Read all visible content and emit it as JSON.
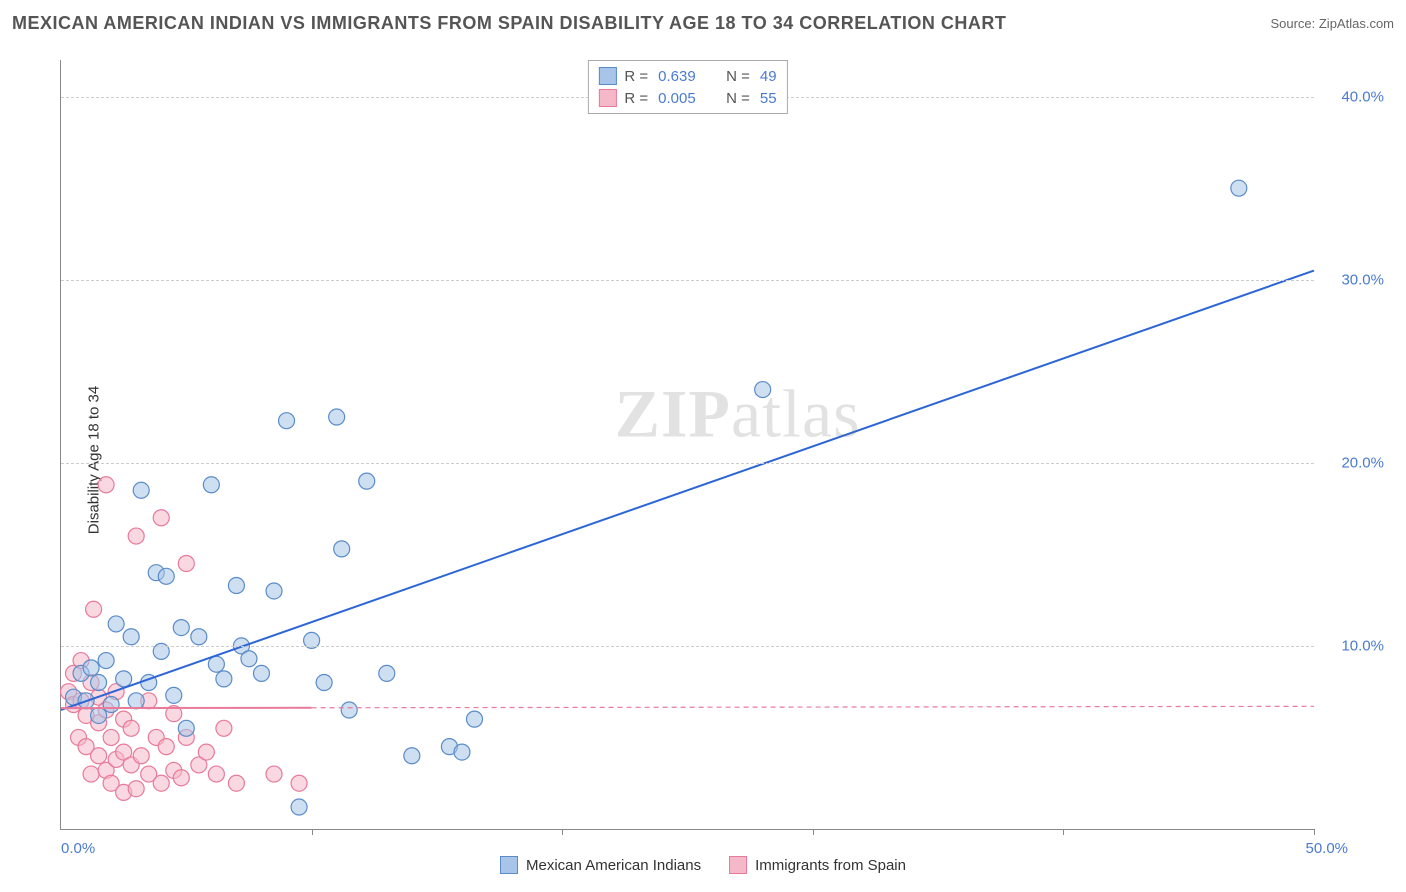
{
  "header": {
    "title": "MEXICAN AMERICAN INDIAN VS IMMIGRANTS FROM SPAIN DISABILITY AGE 18 TO 34 CORRELATION CHART",
    "source": "Source: ZipAtlas.com"
  },
  "chart": {
    "type": "scatter",
    "ylabel": "Disability Age 18 to 34",
    "watermark": "ZIPatlas",
    "background_color": "#ffffff",
    "grid_color": "#cccccc",
    "axis_color": "#888888",
    "xlim": [
      0,
      50
    ],
    "ylim": [
      0,
      42
    ],
    "xticks": [
      0,
      10,
      20,
      30,
      40,
      50
    ],
    "xtick_labels": [
      "0.0%",
      "",
      "",
      "",
      "",
      "50.0%"
    ],
    "yticks": [
      10,
      20,
      30,
      40
    ],
    "ytick_labels": [
      "10.0%",
      "20.0%",
      "30.0%",
      "40.0%"
    ],
    "label_fontsize": 15,
    "label_color": "#4a7bd0",
    "marker_radius": 8,
    "marker_opacity": 0.55,
    "series": [
      {
        "id": "mexican_american_indians",
        "label": "Mexican American Indians",
        "fill_color": "#a8c4e8",
        "stroke_color": "#5a8cc8",
        "trend_color": "#2c66d6",
        "trend_width": 2,
        "trend_dash": "none",
        "r": 0.639,
        "n": 49,
        "trend": {
          "x1": 0,
          "y1": 6.5,
          "x2": 50,
          "y2": 30.5
        },
        "points": [
          [
            0.5,
            7.2
          ],
          [
            0.8,
            8.5
          ],
          [
            1.0,
            7.0
          ],
          [
            1.2,
            8.8
          ],
          [
            1.5,
            6.2
          ],
          [
            1.5,
            8.0
          ],
          [
            1.8,
            9.2
          ],
          [
            2.0,
            6.8
          ],
          [
            2.2,
            11.2
          ],
          [
            2.5,
            8.2
          ],
          [
            2.8,
            10.5
          ],
          [
            3.0,
            7.0
          ],
          [
            3.2,
            18.5
          ],
          [
            3.5,
            8.0
          ],
          [
            3.8,
            14.0
          ],
          [
            4.0,
            9.7
          ],
          [
            4.2,
            13.8
          ],
          [
            4.5,
            7.3
          ],
          [
            4.8,
            11.0
          ],
          [
            5.0,
            5.5
          ],
          [
            5.5,
            10.5
          ],
          [
            6.0,
            18.8
          ],
          [
            6.2,
            9.0
          ],
          [
            6.5,
            8.2
          ],
          [
            7.0,
            13.3
          ],
          [
            7.2,
            10.0
          ],
          [
            7.5,
            9.3
          ],
          [
            8.0,
            8.5
          ],
          [
            8.5,
            13.0
          ],
          [
            9.0,
            22.3
          ],
          [
            9.5,
            1.2
          ],
          [
            10.0,
            10.3
          ],
          [
            10.5,
            8.0
          ],
          [
            11.0,
            22.5
          ],
          [
            11.2,
            15.3
          ],
          [
            11.5,
            6.5
          ],
          [
            12.2,
            19.0
          ],
          [
            13.0,
            8.5
          ],
          [
            14.0,
            4.0
          ],
          [
            15.5,
            4.5
          ],
          [
            16.0,
            4.2
          ],
          [
            16.5,
            6.0
          ],
          [
            28.0,
            24.0
          ],
          [
            47.0,
            35.0
          ]
        ]
      },
      {
        "id": "immigrants_from_spain",
        "label": "Immigrants from Spain",
        "fill_color": "#f5b8c8",
        "stroke_color": "#e87a9a",
        "trend_color": "#e87a9a",
        "trend_width": 2,
        "trend_dash": "5,4",
        "r": 0.005,
        "n": 55,
        "trend": {
          "x1": 0,
          "y1": 6.6,
          "x2": 50,
          "y2": 6.7
        },
        "trend_solid_to": 10,
        "points": [
          [
            0.3,
            7.5
          ],
          [
            0.5,
            6.8
          ],
          [
            0.5,
            8.5
          ],
          [
            0.7,
            5.0
          ],
          [
            0.8,
            7.0
          ],
          [
            0.8,
            9.2
          ],
          [
            1.0,
            4.5
          ],
          [
            1.0,
            6.2
          ],
          [
            1.2,
            3.0
          ],
          [
            1.2,
            8.0
          ],
          [
            1.3,
            12.0
          ],
          [
            1.5,
            4.0
          ],
          [
            1.5,
            5.8
          ],
          [
            1.5,
            7.2
          ],
          [
            1.8,
            3.2
          ],
          [
            1.8,
            6.5
          ],
          [
            1.8,
            18.8
          ],
          [
            2.0,
            2.5
          ],
          [
            2.0,
            5.0
          ],
          [
            2.2,
            3.8
          ],
          [
            2.2,
            7.5
          ],
          [
            2.5,
            2.0
          ],
          [
            2.5,
            4.2
          ],
          [
            2.5,
            6.0
          ],
          [
            2.8,
            3.5
          ],
          [
            2.8,
            5.5
          ],
          [
            3.0,
            2.2
          ],
          [
            3.0,
            16.0
          ],
          [
            3.2,
            4.0
          ],
          [
            3.5,
            3.0
          ],
          [
            3.5,
            7.0
          ],
          [
            3.8,
            5.0
          ],
          [
            4.0,
            2.5
          ],
          [
            4.0,
            17.0
          ],
          [
            4.2,
            4.5
          ],
          [
            4.5,
            3.2
          ],
          [
            4.5,
            6.3
          ],
          [
            4.8,
            2.8
          ],
          [
            5.0,
            14.5
          ],
          [
            5.0,
            5.0
          ],
          [
            5.5,
            3.5
          ],
          [
            5.8,
            4.2
          ],
          [
            6.2,
            3.0
          ],
          [
            6.5,
            5.5
          ],
          [
            7.0,
            2.5
          ],
          [
            8.5,
            3.0
          ],
          [
            9.5,
            2.5
          ]
        ]
      }
    ],
    "legend_top": {
      "r_label": "R  =",
      "n_label": "N  ="
    }
  }
}
